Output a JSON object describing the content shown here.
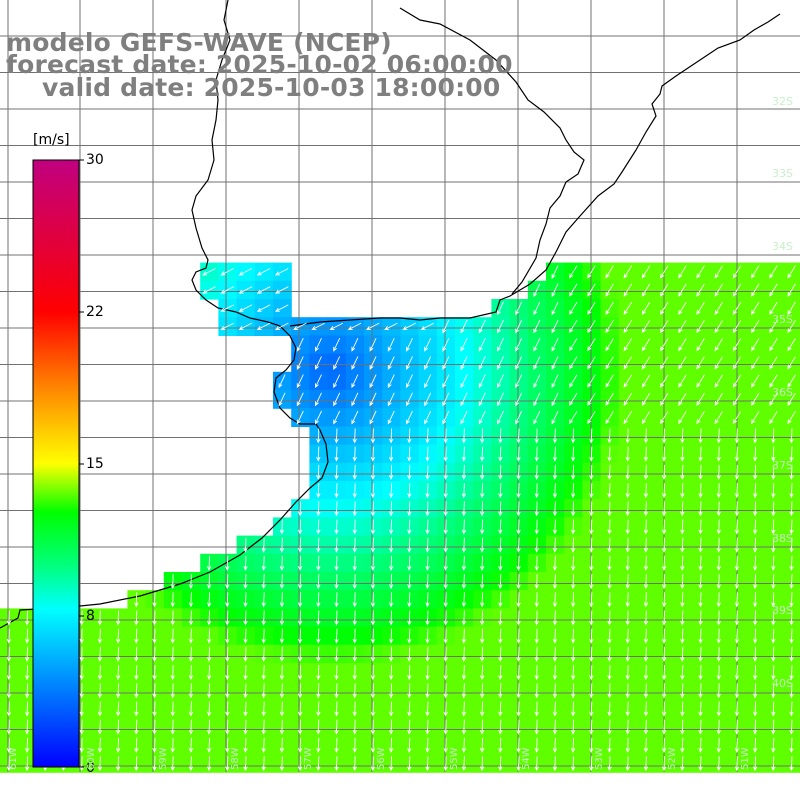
{
  "titles": {
    "model": "modelo GEFS-WAVE (NCEP)",
    "forecast": "forecast date: 2025-10-02 06:00:00",
    "valid": "valid date: 2025-10-03 18:00:00"
  },
  "colorbar": {
    "unit": "[m/s]",
    "ticks": [
      "30",
      "22",
      "15",
      "8",
      "0"
    ],
    "colors": [
      "#0000ff",
      "#0080ff",
      "#00e0ff",
      "#00ff80",
      "#00ff00",
      "#ffff00",
      "#ff8000",
      "#ff0000",
      "#c00080"
    ]
  },
  "lat_labels": [
    "32S",
    "33S",
    "34S",
    "35S",
    "36S",
    "37S",
    "38S",
    "39S",
    "40S"
  ],
  "lon_labels": [
    "61W",
    "60W",
    "59W",
    "58W",
    "57W",
    "56W",
    "55W",
    "54W",
    "53W",
    "52W",
    "51W"
  ],
  "colors": {
    "land": "#ffffff",
    "coast": "#000000",
    "grid": "#707070",
    "arrow": "#ffffff",
    "title": "#7f7f7f"
  }
}
